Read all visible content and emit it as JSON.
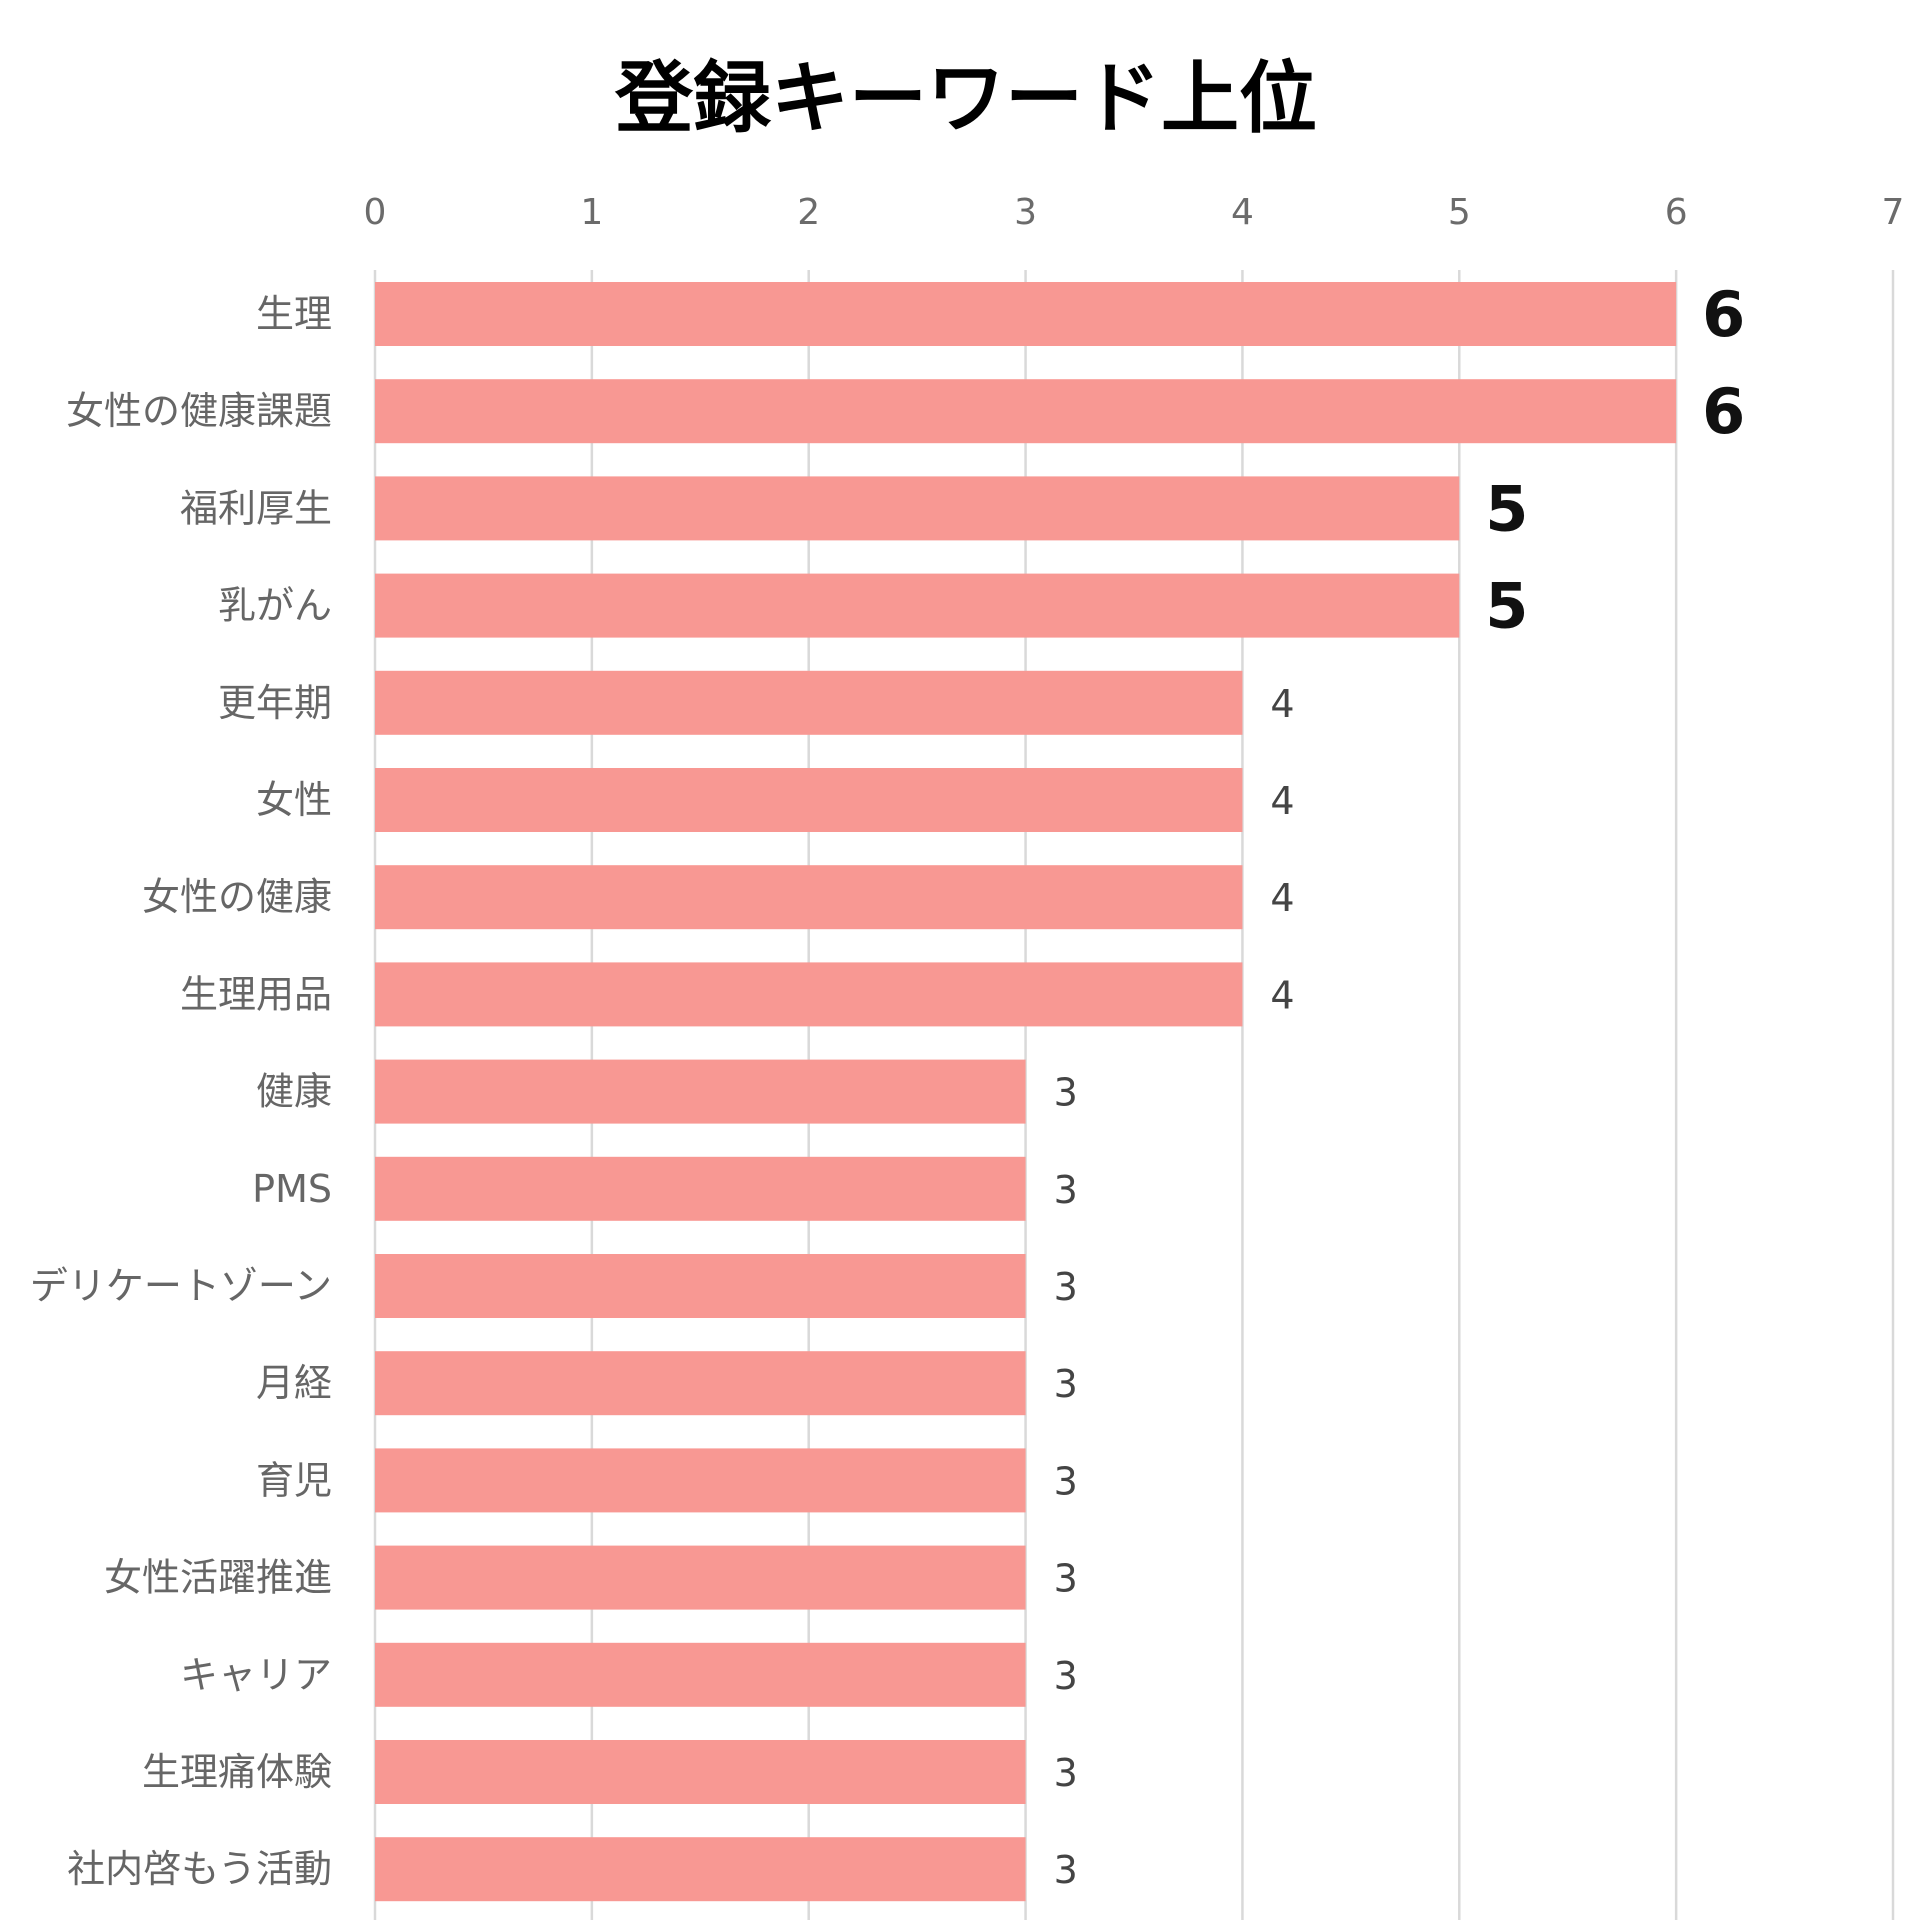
{
  "chart_data": {
    "type": "bar",
    "orientation": "horizontal",
    "title": "登録キーワード上位",
    "xlabel": "",
    "ylabel": "",
    "xlim": [
      0,
      7
    ],
    "x_ticks": [
      "0",
      "1",
      "2",
      "3",
      "4",
      "5",
      "6",
      "7"
    ],
    "x_axis_position": "top",
    "grid": true,
    "legend": "none",
    "bar_color": "#f89893",
    "categories": [
      "生理",
      "女性の健康課題",
      "福利厚生",
      "乳がん",
      "更年期",
      "女性",
      "女性の健康",
      "生理用品",
      "健康",
      "PMS",
      "デリケートゾーン",
      "月経",
      "育児",
      "女性活躍推進",
      "キャリア",
      "生理痛体験",
      "社内啓もう活動"
    ],
    "values": [
      6,
      6,
      5,
      5,
      4,
      4,
      4,
      4,
      3,
      3,
      3,
      3,
      3,
      3,
      3,
      3,
      3
    ],
    "data_labels": [
      "6",
      "6",
      "5",
      "5",
      "4",
      "4",
      "4",
      "4",
      "3",
      "3",
      "3",
      "3",
      "3",
      "3",
      "3",
      "3",
      "3"
    ],
    "emphasized_labels": [
      0,
      1,
      2,
      3
    ]
  }
}
